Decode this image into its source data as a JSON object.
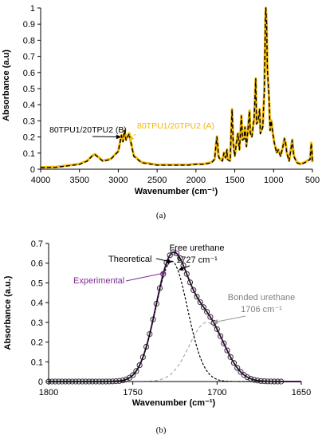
{
  "colors": {
    "theoretical_a": "#000000",
    "experimental_a": "#f2b705",
    "experimental_b": "#7b2d8e",
    "theoretical_b": "#000000",
    "bonded_curve": "#999999",
    "bonded_label": "#808080",
    "marker": "#333333"
  },
  "chart_data": [
    {
      "id": "a",
      "type": "line",
      "caption": "(a)",
      "xlabel": "Wavenumber (cm⁻¹)",
      "ylabel": "Absorbance (a.u)",
      "xlim": [
        4000,
        500
      ],
      "ylim": [
        0,
        1
      ],
      "x_reversed": true,
      "xticks": [
        4000,
        3500,
        3000,
        2500,
        2000,
        1500,
        1000,
        500
      ],
      "yticks": [
        0,
        0.1,
        0.2,
        0.3,
        0.4,
        0.5,
        0.6,
        0.7,
        0.8,
        0.9,
        1
      ],
      "ytick_labels": [
        "0",
        "0.1",
        "0.2",
        "0.3",
        "0.4",
        "0.5",
        "0.6",
        "0.7",
        "0.8",
        "0.9",
        "1"
      ],
      "grid": false,
      "series": [
        {
          "name": "80TPU1/20TPU2 (B)",
          "style": "solid",
          "points": [
            [
              4000,
              0.01
            ],
            [
              3800,
              0.012
            ],
            [
              3500,
              0.03
            ],
            [
              3400,
              0.05
            ],
            [
              3340,
              0.08
            ],
            [
              3300,
              0.09
            ],
            [
              3250,
              0.07
            ],
            [
              3200,
              0.05
            ],
            [
              3100,
              0.06
            ],
            [
              3000,
              0.11
            ],
            [
              2980,
              0.16
            ],
            [
              2960,
              0.21
            ],
            [
              2940,
              0.17
            ],
            [
              2920,
              0.24
            ],
            [
              2900,
              0.18
            ],
            [
              2880,
              0.2
            ],
            [
              2860,
              0.22
            ],
            [
              2840,
              0.17
            ],
            [
              2800,
              0.08
            ],
            [
              2700,
              0.04
            ],
            [
              2500,
              0.025
            ],
            [
              2300,
              0.025
            ],
            [
              2100,
              0.025
            ],
            [
              2000,
              0.03
            ],
            [
              1900,
              0.03
            ],
            [
              1800,
              0.04
            ],
            [
              1760,
              0.06
            ],
            [
              1740,
              0.16
            ],
            [
              1730,
              0.2
            ],
            [
              1720,
              0.15
            ],
            [
              1710,
              0.08
            ],
            [
              1690,
              0.06
            ],
            [
              1660,
              0.05
            ],
            [
              1640,
              0.1
            ],
            [
              1620,
              0.07
            ],
            [
              1600,
              0.12
            ],
            [
              1595,
              0.06
            ],
            [
              1560,
              0.05
            ],
            [
              1535,
              0.37
            ],
            [
              1520,
              0.16
            ],
            [
              1500,
              0.08
            ],
            [
              1480,
              0.16
            ],
            [
              1460,
              0.22
            ],
            [
              1440,
              0.12
            ],
            [
              1415,
              0.33
            ],
            [
              1400,
              0.18
            ],
            [
              1380,
              0.19
            ],
            [
              1370,
              0.26
            ],
            [
              1350,
              0.14
            ],
            [
              1310,
              0.36
            ],
            [
              1300,
              0.22
            ],
            [
              1280,
              0.2
            ],
            [
              1250,
              0.32
            ],
            [
              1230,
              0.56
            ],
            [
              1220,
              0.28
            ],
            [
              1200,
              0.3
            ],
            [
              1180,
              0.37
            ],
            [
              1170,
              0.22
            ],
            [
              1140,
              0.26
            ],
            [
              1120,
              0.48
            ],
            [
              1105,
              0.94
            ],
            [
              1100,
              1.0
            ],
            [
              1090,
              0.9
            ],
            [
              1080,
              0.62
            ],
            [
              1060,
              0.45
            ],
            [
              1045,
              0.24
            ],
            [
              1030,
              0.3
            ],
            [
              1010,
              0.22
            ],
            [
              990,
              0.16
            ],
            [
              960,
              0.1
            ],
            [
              940,
              0.12
            ],
            [
              910,
              0.08
            ],
            [
              880,
              0.14
            ],
            [
              860,
              0.19
            ],
            [
              845,
              0.16
            ],
            [
              830,
              0.1
            ],
            [
              800,
              0.05
            ],
            [
              760,
              0.18
            ],
            [
              740,
              0.08
            ],
            [
              700,
              0.04
            ],
            [
              650,
              0.03
            ],
            [
              600,
              0.04
            ],
            [
              530,
              0.06
            ],
            [
              515,
              0.16
            ],
            [
              505,
              0.1
            ],
            [
              500,
              0.04
            ]
          ]
        },
        {
          "name": "80TPU1/20TPU2 (A)",
          "style": "dashed",
          "points": [
            [
              4000,
              0.012
            ],
            [
              3800,
              0.014
            ],
            [
              3500,
              0.033
            ],
            [
              3400,
              0.053
            ],
            [
              3340,
              0.083
            ],
            [
              3300,
              0.093
            ],
            [
              3250,
              0.073
            ],
            [
              3200,
              0.053
            ],
            [
              3100,
              0.063
            ],
            [
              3000,
              0.113
            ],
            [
              2980,
              0.163
            ],
            [
              2960,
              0.213
            ],
            [
              2940,
              0.173
            ],
            [
              2920,
              0.243
            ],
            [
              2900,
              0.183
            ],
            [
              2880,
              0.203
            ],
            [
              2860,
              0.223
            ],
            [
              2840,
              0.173
            ],
            [
              2800,
              0.083
            ],
            [
              2700,
              0.043
            ],
            [
              2500,
              0.028
            ],
            [
              2300,
              0.028
            ],
            [
              2100,
              0.028
            ],
            [
              2000,
              0.033
            ],
            [
              1900,
              0.033
            ],
            [
              1800,
              0.043
            ],
            [
              1760,
              0.063
            ],
            [
              1740,
              0.163
            ],
            [
              1730,
              0.203
            ],
            [
              1720,
              0.153
            ],
            [
              1710,
              0.083
            ],
            [
              1690,
              0.063
            ],
            [
              1660,
              0.053
            ],
            [
              1640,
              0.103
            ],
            [
              1620,
              0.073
            ],
            [
              1600,
              0.123
            ],
            [
              1595,
              0.063
            ],
            [
              1560,
              0.053
            ],
            [
              1535,
              0.373
            ],
            [
              1520,
              0.163
            ],
            [
              1500,
              0.083
            ],
            [
              1480,
              0.163
            ],
            [
              1460,
              0.223
            ],
            [
              1440,
              0.123
            ],
            [
              1415,
              0.333
            ],
            [
              1400,
              0.183
            ],
            [
              1380,
              0.193
            ],
            [
              1370,
              0.263
            ],
            [
              1350,
              0.143
            ],
            [
              1310,
              0.363
            ],
            [
              1300,
              0.223
            ],
            [
              1280,
              0.203
            ],
            [
              1250,
              0.323
            ],
            [
              1230,
              0.563
            ],
            [
              1220,
              0.283
            ],
            [
              1200,
              0.303
            ],
            [
              1180,
              0.373
            ],
            [
              1170,
              0.223
            ],
            [
              1140,
              0.263
            ],
            [
              1120,
              0.483
            ],
            [
              1105,
              0.943
            ],
            [
              1100,
              1.0
            ],
            [
              1090,
              0.903
            ],
            [
              1080,
              0.623
            ],
            [
              1060,
              0.453
            ],
            [
              1045,
              0.243
            ],
            [
              1030,
              0.303
            ],
            [
              1010,
              0.223
            ],
            [
              990,
              0.163
            ],
            [
              960,
              0.103
            ],
            [
              940,
              0.123
            ],
            [
              910,
              0.083
            ],
            [
              880,
              0.143
            ],
            [
              860,
              0.193
            ],
            [
              845,
              0.163
            ],
            [
              830,
              0.103
            ],
            [
              800,
              0.053
            ],
            [
              760,
              0.183
            ],
            [
              740,
              0.083
            ],
            [
              700,
              0.043
            ],
            [
              650,
              0.033
            ],
            [
              600,
              0.043
            ],
            [
              530,
              0.063
            ],
            [
              515,
              0.163
            ],
            [
              505,
              0.103
            ],
            [
              500,
              0.043
            ]
          ]
        }
      ],
      "annotations": [
        {
          "text": "80TPU1/20TPU2 (B)",
          "target": [
            2950,
            0.21
          ]
        },
        {
          "text": "80TPU1/20TPU2 (A)",
          "target": [
            2900,
            0.19
          ]
        }
      ]
    },
    {
      "id": "b",
      "type": "line",
      "caption": "(b)",
      "xlabel": "Wavenumber (cm⁻¹)",
      "ylabel": "Absorbance (a.u.)",
      "xlim": [
        1800,
        1650
      ],
      "ylim": [
        0,
        0.7
      ],
      "x_reversed": true,
      "xticks": [
        1800,
        1750,
        1700,
        1650
      ],
      "yticks": [
        0,
        0.1,
        0.2,
        0.3,
        0.4,
        0.5,
        0.6,
        0.7
      ],
      "ytick_labels": [
        "0",
        "0.1",
        "0.2",
        "0.3",
        "0.4",
        "0.5",
        "0.6",
        "0.7"
      ],
      "grid": false,
      "peaks": [
        {
          "center": 1727,
          "height": 0.61,
          "sigma": 9.5
        },
        {
          "center": 1706,
          "height": 0.3,
          "sigma": 10.5
        }
      ],
      "series": [
        {
          "name": "Theoretical",
          "style": "solid"
        },
        {
          "name": "Experimental",
          "style": "circles"
        },
        {
          "name": "Free urethane",
          "style": "dashed"
        },
        {
          "name": "Bonded urethane",
          "style": "dashed-grey"
        }
      ],
      "annotations": {
        "theoretical": {
          "text": "Theoretical",
          "target": [
            1726,
            0.61
          ]
        },
        "free": {
          "line1": "Free urethane",
          "line2": "1727 cm⁻¹",
          "target": [
            1724,
            0.57
          ]
        },
        "experimental": {
          "text": "Experimental",
          "target": [
            1729,
            0.56
          ]
        },
        "bonded": {
          "line1": "Bonded urethane",
          "line2": "1706 cm⁻¹",
          "target": [
            1703,
            0.3
          ]
        }
      }
    }
  ]
}
